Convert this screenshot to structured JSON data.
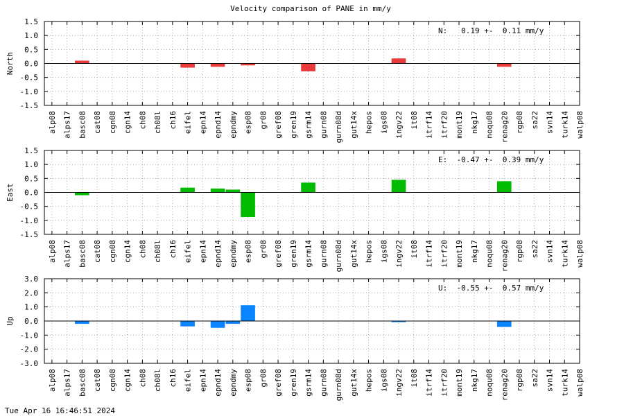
{
  "title": "Velocity comparison of PANE in mm/y",
  "timestamp": "Tue Apr 16 16:46:51 2024",
  "chart_data": [
    {
      "type": "bar",
      "ylabel": "North",
      "annotation": "N:   0.19 +-  0.11 mm/y",
      "color": "#e83a3a",
      "ylim": [
        -1.5,
        1.5
      ],
      "yticks": [
        -1.5,
        -1.0,
        -0.5,
        0.0,
        0.5,
        1.0,
        1.5
      ],
      "ytick_labels": [
        "-1.5",
        "-1.0",
        "-0.5",
        "0.0",
        "0.5",
        "1.0",
        "1.5"
      ],
      "grid": true,
      "categories": [
        "alp08",
        "alps17",
        "basc08",
        "cat08",
        "cgn08",
        "cgn14",
        "ch08",
        "ch08l",
        "ch16",
        "eifel",
        "epn14",
        "epnd14",
        "epndmy",
        "esp08",
        "gr08",
        "gref08",
        "gren19",
        "gsrm14",
        "gurn08",
        "gurn08d",
        "gut14x",
        "hepos",
        "igs08",
        "ingv22",
        "it08",
        "itrf14",
        "itrf20",
        "mont19",
        "nkg17",
        "noqu08",
        "renag20",
        "rgp08",
        "sa22",
        "svn14",
        "turk14",
        "walp08"
      ],
      "values": [
        null,
        null,
        0.1,
        null,
        null,
        null,
        null,
        null,
        null,
        -0.15,
        null,
        -0.12,
        null,
        -0.07,
        null,
        null,
        null,
        -0.28,
        null,
        null,
        null,
        null,
        null,
        0.18,
        null,
        null,
        null,
        null,
        null,
        null,
        -0.12,
        null,
        null,
        null,
        null,
        null
      ]
    },
    {
      "type": "bar",
      "ylabel": "East",
      "annotation": "E:  -0.47 +-  0.39 mm/y",
      "color": "#00bb00",
      "ylim": [
        -1.5,
        1.5
      ],
      "yticks": [
        -1.5,
        -1.0,
        -0.5,
        0.0,
        0.5,
        1.0,
        1.5
      ],
      "ytick_labels": [
        "-1.5",
        "-1.0",
        "-0.5",
        "0.0",
        "0.5",
        "1.0",
        "1.5"
      ],
      "grid": true,
      "categories": [
        "alp08",
        "alps17",
        "basc08",
        "cat08",
        "cgn08",
        "cgn14",
        "ch08",
        "ch08l",
        "ch16",
        "eifel",
        "epn14",
        "epnd14",
        "epndmy",
        "esp08",
        "gr08",
        "gref08",
        "gren19",
        "gsrm14",
        "gurn08",
        "gurn08d",
        "gut14x",
        "hepos",
        "igs08",
        "ingv22",
        "it08",
        "itrf14",
        "itrf20",
        "mont19",
        "nkg17",
        "noqu08",
        "renag20",
        "rgp08",
        "sa22",
        "svn14",
        "turk14",
        "walp08"
      ],
      "values": [
        null,
        null,
        -0.1,
        null,
        null,
        null,
        null,
        null,
        null,
        0.17,
        null,
        0.14,
        0.1,
        -0.88,
        null,
        null,
        null,
        0.35,
        null,
        null,
        null,
        null,
        null,
        0.45,
        null,
        null,
        null,
        null,
        null,
        null,
        0.4,
        null,
        null,
        null,
        null,
        null
      ]
    },
    {
      "type": "bar",
      "ylabel": "Up",
      "annotation": "U:  -0.55 +-  0.57 mm/y",
      "color": "#0a84ff",
      "ylim": [
        -3.0,
        3.0
      ],
      "yticks": [
        -3.0,
        -2.0,
        -1.0,
        0.0,
        1.0,
        2.0,
        3.0
      ],
      "ytick_labels": [
        "-3.0",
        "-2.0",
        "-1.0",
        "0.0",
        "1.0",
        "2.0",
        "3.0"
      ],
      "grid": true,
      "categories": [
        "alp08",
        "alps17",
        "basc08",
        "cat08",
        "cgn08",
        "cgn14",
        "ch08",
        "ch08l",
        "ch16",
        "eifel",
        "epn14",
        "epnd14",
        "epndmy",
        "esp08",
        "gr08",
        "gref08",
        "gren19",
        "gsrm14",
        "gurn08",
        "gurn08d",
        "gut14x",
        "hepos",
        "igs08",
        "ingv22",
        "it08",
        "itrf14",
        "itrf20",
        "mont19",
        "nkg17",
        "noqu08",
        "renag20",
        "rgp08",
        "sa22",
        "svn14",
        "turk14",
        "walp08"
      ],
      "values": [
        null,
        null,
        -0.2,
        null,
        null,
        null,
        null,
        null,
        null,
        -0.38,
        null,
        -0.48,
        -0.2,
        1.12,
        null,
        null,
        null,
        null,
        null,
        null,
        null,
        null,
        null,
        -0.08,
        null,
        null,
        null,
        null,
        null,
        null,
        -0.42,
        null,
        null,
        null,
        null,
        null
      ]
    }
  ]
}
